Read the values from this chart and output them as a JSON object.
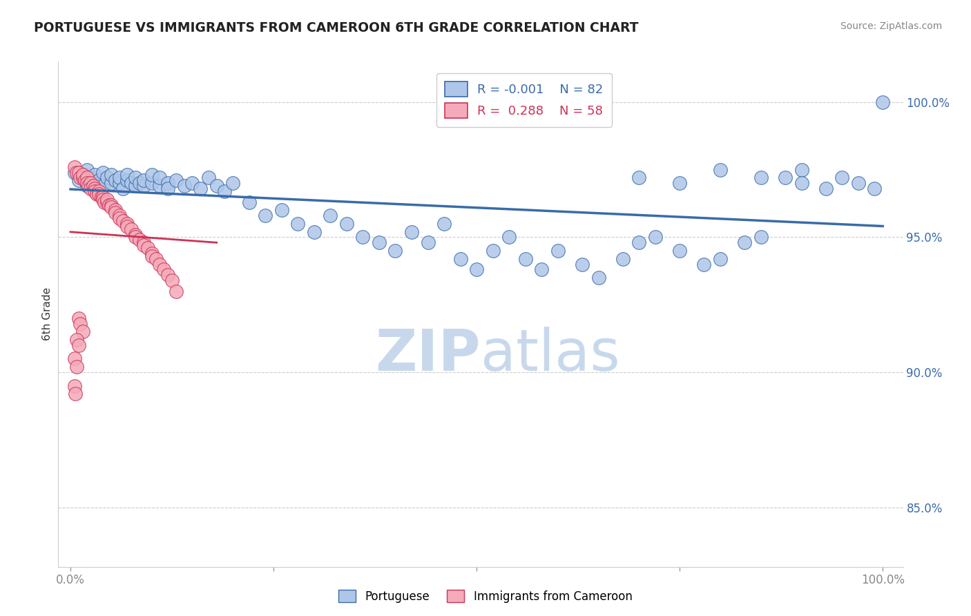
{
  "title": "PORTUGUESE VS IMMIGRANTS FROM CAMEROON 6TH GRADE CORRELATION CHART",
  "source": "Source: ZipAtlas.com",
  "ylabel": "6th Grade",
  "blue_R": "-0.001",
  "blue_N": "82",
  "pink_R": "0.288",
  "pink_N": "58",
  "blue_color": "#aec6e8",
  "pink_color": "#f4aaba",
  "blue_line_color": "#3a6baa",
  "pink_line_color": "#cc3355",
  "watermark_color": "#c8d8ec",
  "blue_x": [
    0.005,
    0.01,
    0.015,
    0.02,
    0.02,
    0.025,
    0.03,
    0.03,
    0.035,
    0.04,
    0.04,
    0.045,
    0.05,
    0.05,
    0.055,
    0.06,
    0.06,
    0.065,
    0.07,
    0.07,
    0.075,
    0.08,
    0.08,
    0.085,
    0.09,
    0.09,
    0.1,
    0.1,
    0.11,
    0.11,
    0.12,
    0.12,
    0.13,
    0.14,
    0.15,
    0.16,
    0.17,
    0.18,
    0.19,
    0.2,
    0.22,
    0.24,
    0.26,
    0.28,
    0.3,
    0.32,
    0.34,
    0.36,
    0.38,
    0.4,
    0.42,
    0.44,
    0.46,
    0.48,
    0.5,
    0.52,
    0.54,
    0.56,
    0.58,
    0.6,
    0.63,
    0.65,
    0.68,
    0.7,
    0.72,
    0.75,
    0.78,
    0.8,
    0.83,
    0.85,
    0.88,
    0.9,
    0.93,
    0.95,
    0.97,
    0.99,
    0.7,
    0.75,
    0.8,
    0.85,
    0.9,
    1.0
  ],
  "blue_y": [
    0.974,
    0.971,
    0.973,
    0.975,
    0.969,
    0.972,
    0.97,
    0.973,
    0.971,
    0.969,
    0.974,
    0.972,
    0.97,
    0.973,
    0.971,
    0.97,
    0.972,
    0.968,
    0.971,
    0.973,
    0.97,
    0.969,
    0.972,
    0.97,
    0.969,
    0.971,
    0.97,
    0.973,
    0.969,
    0.972,
    0.97,
    0.968,
    0.971,
    0.969,
    0.97,
    0.968,
    0.972,
    0.969,
    0.967,
    0.97,
    0.963,
    0.958,
    0.96,
    0.955,
    0.952,
    0.958,
    0.955,
    0.95,
    0.948,
    0.945,
    0.952,
    0.948,
    0.955,
    0.942,
    0.938,
    0.945,
    0.95,
    0.942,
    0.938,
    0.945,
    0.94,
    0.935,
    0.942,
    0.948,
    0.95,
    0.945,
    0.94,
    0.942,
    0.948,
    0.95,
    0.972,
    0.975,
    0.968,
    0.972,
    0.97,
    0.968,
    0.972,
    0.97,
    0.975,
    0.972,
    0.97,
    1.0
  ],
  "pink_x": [
    0.005,
    0.008,
    0.01,
    0.012,
    0.015,
    0.015,
    0.018,
    0.02,
    0.02,
    0.022,
    0.025,
    0.025,
    0.028,
    0.03,
    0.03,
    0.032,
    0.035,
    0.035,
    0.038,
    0.04,
    0.04,
    0.042,
    0.045,
    0.045,
    0.048,
    0.05,
    0.05,
    0.055,
    0.055,
    0.06,
    0.06,
    0.065,
    0.07,
    0.07,
    0.075,
    0.08,
    0.08,
    0.085,
    0.09,
    0.09,
    0.095,
    0.1,
    0.1,
    0.105,
    0.11,
    0.115,
    0.12,
    0.125,
    0.13,
    0.01,
    0.012,
    0.015,
    0.008,
    0.01,
    0.005,
    0.008,
    0.005,
    0.006
  ],
  "pink_y": [
    0.976,
    0.974,
    0.974,
    0.972,
    0.972,
    0.973,
    0.971,
    0.972,
    0.97,
    0.969,
    0.97,
    0.968,
    0.969,
    0.968,
    0.967,
    0.966,
    0.967,
    0.966,
    0.965,
    0.965,
    0.964,
    0.963,
    0.963,
    0.964,
    0.962,
    0.962,
    0.961,
    0.96,
    0.959,
    0.958,
    0.957,
    0.956,
    0.955,
    0.954,
    0.953,
    0.951,
    0.95,
    0.949,
    0.948,
    0.947,
    0.946,
    0.944,
    0.943,
    0.942,
    0.94,
    0.938,
    0.936,
    0.934,
    0.93,
    0.92,
    0.918,
    0.915,
    0.912,
    0.91,
    0.905,
    0.902,
    0.895,
    0.892
  ]
}
